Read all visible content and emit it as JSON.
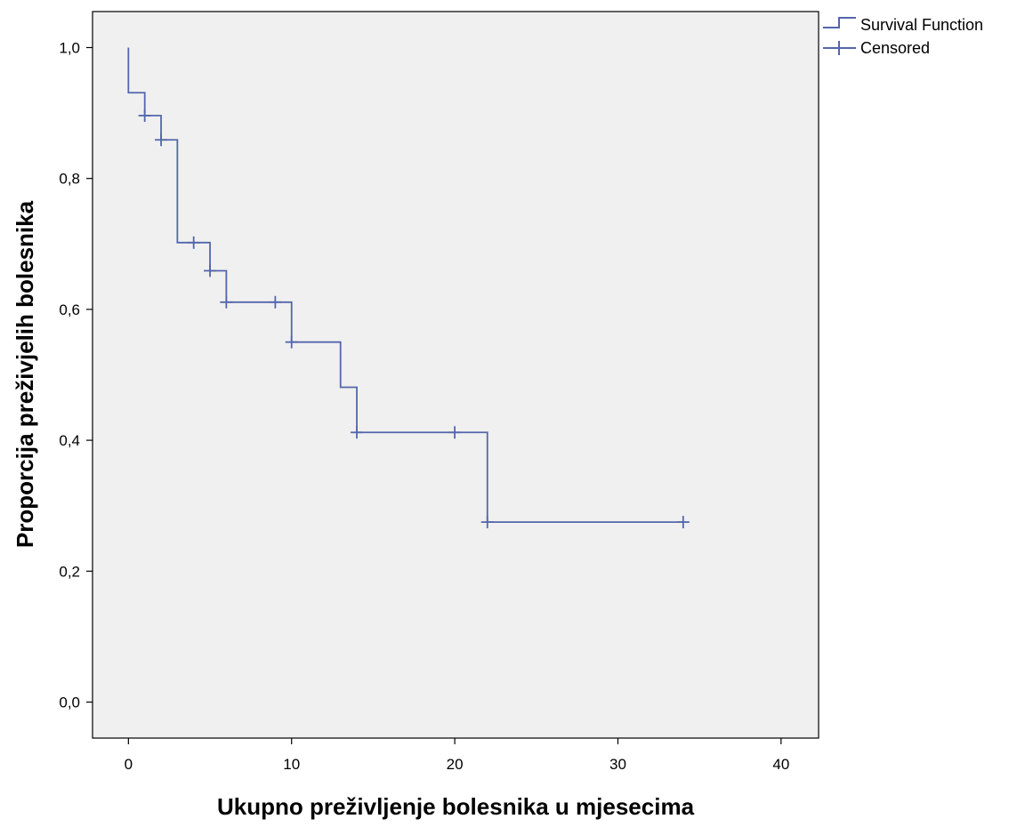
{
  "chart_data": {
    "type": "line",
    "title": "",
    "xlabel": "Ukupno preživljenje bolesnika u mjesecima",
    "ylabel": "Proporcija preživjelih bolesnika",
    "xlim": [
      -2.2,
      42.3
    ],
    "ylim": [
      -0.055,
      1.055
    ],
    "xticks": [
      0,
      10,
      20,
      30,
      40
    ],
    "xtick_labels": [
      "0",
      "10",
      "20",
      "30",
      "40"
    ],
    "yticks": [
      0.0,
      0.2,
      0.4,
      0.6,
      0.8,
      1.0
    ],
    "ytick_labels": [
      "0,0",
      "0,2",
      "0,4",
      "0,6",
      "0,8",
      "1,0"
    ],
    "grid": false,
    "legend_position": "top-right outside plot",
    "colors": {
      "series": "#5466ac",
      "plot_background": "#f0f0f0",
      "axis": "#000000"
    },
    "series": [
      {
        "name": "Survival Function",
        "kind": "step",
        "points": [
          [
            0,
            1.0
          ],
          [
            0,
            0.931
          ],
          [
            1,
            0.931
          ],
          [
            1,
            0.896
          ],
          [
            2,
            0.896
          ],
          [
            2,
            0.859
          ],
          [
            3,
            0.859
          ],
          [
            3,
            0.702
          ],
          [
            5,
            0.702
          ],
          [
            5,
            0.659
          ],
          [
            6,
            0.659
          ],
          [
            6,
            0.611
          ],
          [
            10,
            0.611
          ],
          [
            10,
            0.55
          ],
          [
            13,
            0.55
          ],
          [
            13,
            0.481
          ],
          [
            14,
            0.481
          ],
          [
            14,
            0.412
          ],
          [
            22,
            0.412
          ],
          [
            22,
            0.275
          ],
          [
            34,
            0.275
          ]
        ]
      },
      {
        "name": "Censored",
        "kind": "marker",
        "points": [
          [
            1,
            0.896
          ],
          [
            2,
            0.859
          ],
          [
            4,
            0.702
          ],
          [
            5,
            0.659
          ],
          [
            6,
            0.611
          ],
          [
            9,
            0.611
          ],
          [
            10,
            0.55
          ],
          [
            14,
            0.412
          ],
          [
            20,
            0.412
          ],
          [
            22,
            0.275
          ],
          [
            34,
            0.275
          ]
        ]
      }
    ]
  }
}
